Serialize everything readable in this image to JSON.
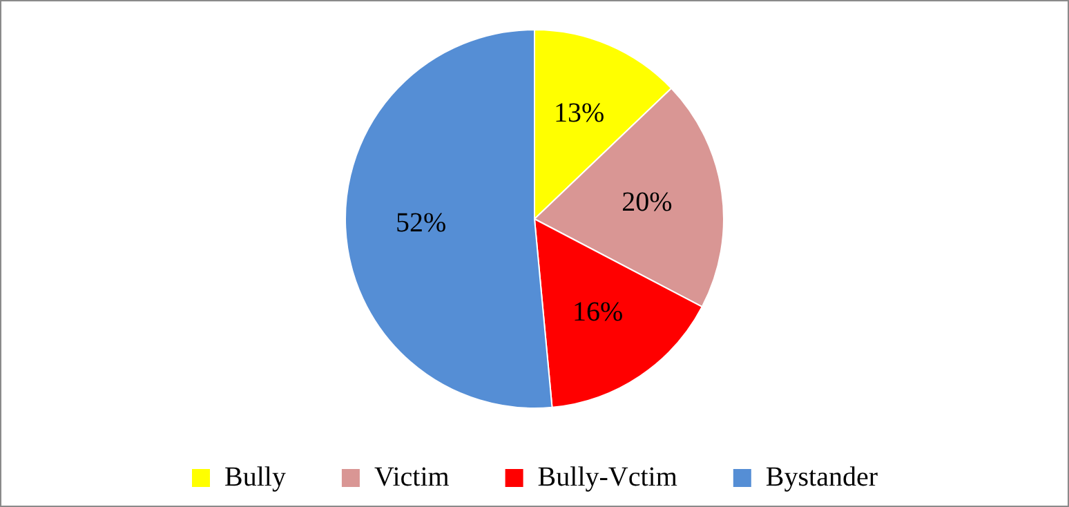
{
  "chart_data": {
    "type": "pie",
    "categories": [
      "Bully",
      "Victim",
      "Bully-Vctim",
      "Bystander"
    ],
    "values": [
      13,
      20,
      16,
      52
    ],
    "colors": [
      "#ffff00",
      "#d99694",
      "#ff0000",
      "#558ed5"
    ],
    "value_labels": [
      "13%",
      "20%",
      "16%",
      "52%"
    ],
    "legend": "bottom"
  }
}
